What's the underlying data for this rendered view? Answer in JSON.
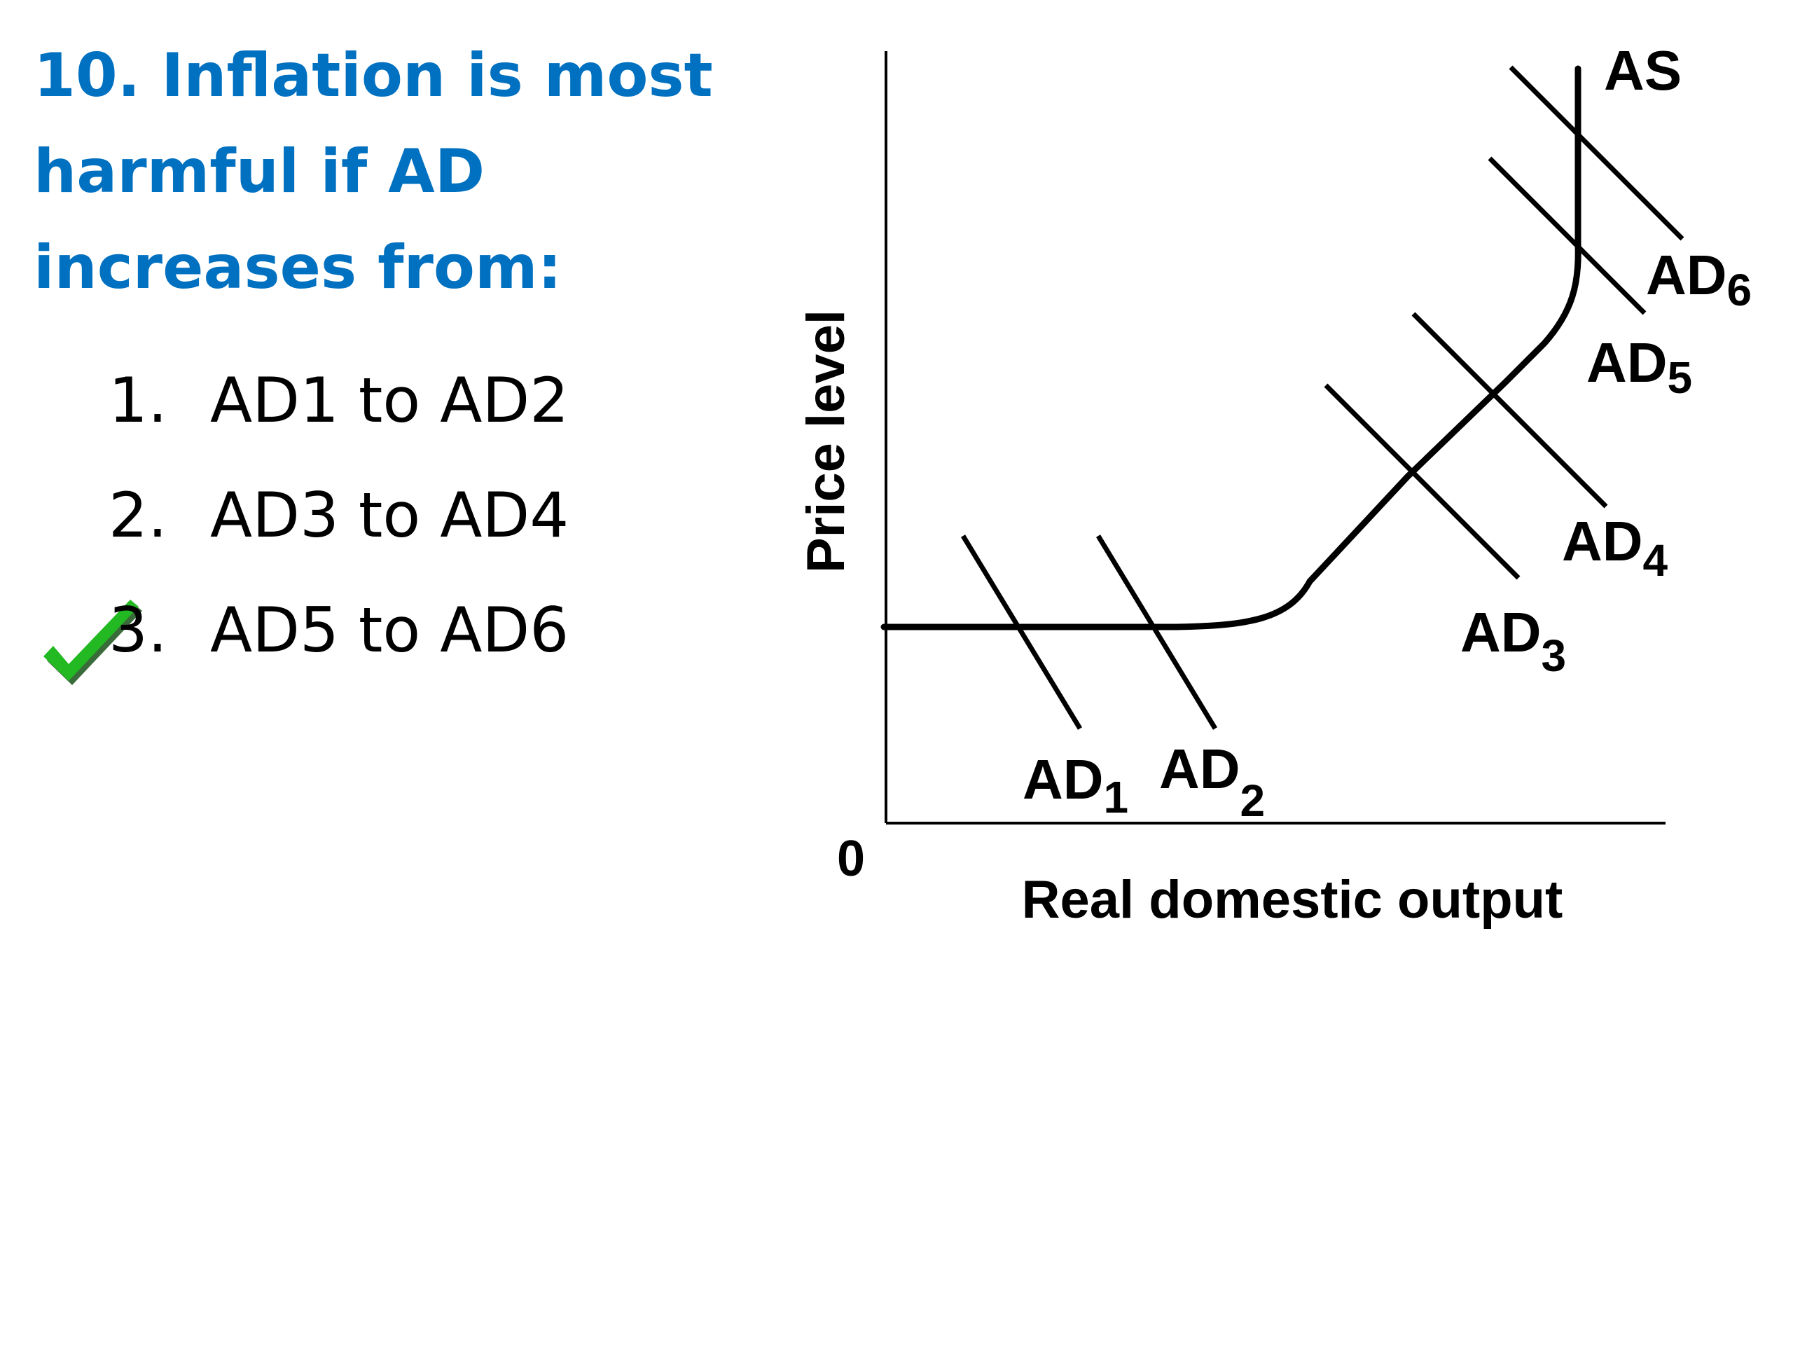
{
  "question": {
    "title": "10. Inflation is most harmful if AD increases from:"
  },
  "options": [
    {
      "number": "1.",
      "text": "AD1 to AD2",
      "correct": false
    },
    {
      "number": "2.",
      "text": "AD3 to AD4",
      "correct": false
    },
    {
      "number": "3.",
      "text": "AD5 to AD6",
      "correct": true
    }
  ],
  "check_icon": {
    "name": "check-icon",
    "color": "#22b922"
  },
  "diagram": {
    "xlabel": "Real domestic output",
    "ylabel": "Price level",
    "origin": "0",
    "supply": {
      "label": "AS"
    },
    "demand": [
      {
        "prefix": "AD",
        "sub": "1"
      },
      {
        "prefix": "AD",
        "sub": "2"
      },
      {
        "prefix": "AD",
        "sub": "3"
      },
      {
        "prefix": "AD",
        "sub": "4"
      },
      {
        "prefix": "AD",
        "sub": "5"
      },
      {
        "prefix": "AD",
        "sub": "6"
      }
    ]
  }
}
